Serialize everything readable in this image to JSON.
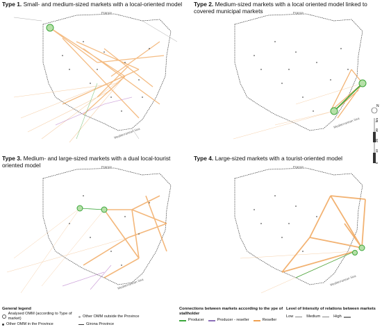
{
  "panels": [
    {
      "type": "Type 1.",
      "title": "Small- and medium-sized markets with a local-oriented model",
      "country": "France",
      "sea": "Mediterranean Sea"
    },
    {
      "type": "Type 2.",
      "title": "Medium-sized markets with a local oriented model linked to covered municipal markets",
      "country": "France",
      "sea": "Mediterranean Sea"
    },
    {
      "type": "Type 3.",
      "title": "Medium- and large-sized markets with a dual local-tourist oriented model",
      "country": "France",
      "sea": "Mediterranean Sea"
    },
    {
      "type": "Type 4.",
      "title": "Large-sized markets with a tourist-oriented model",
      "country": "France",
      "sea": "Mediterranean Sea"
    }
  ],
  "scale": {
    "north": "N",
    "unit": "km",
    "ticks": [
      "30",
      "20",
      "10",
      "0"
    ]
  },
  "general_legend": {
    "title": "General legend",
    "items": [
      "Analysed OMM (according to Type of market)",
      "Other OMM in the Province",
      "Other OMM outside the Province",
      "Girona Province"
    ]
  },
  "connections_legend": {
    "title": "Connections between markets according to the ype of stallholder",
    "items": [
      "Producer",
      "Producer - reseller",
      "Reseller"
    ],
    "colors": [
      "#3aa63a",
      "#8c6fb8",
      "#f0a050"
    ]
  },
  "intensity_legend": {
    "title": "Level of Intensity of relations between markets",
    "items": [
      "Low",
      "Medium",
      "High"
    ]
  }
}
